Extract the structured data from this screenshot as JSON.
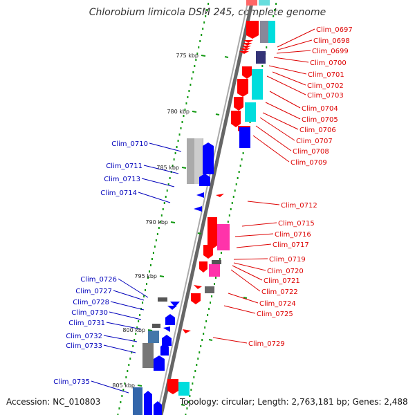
{
  "title": "Chlorobium limicola DSM 245, complete genome",
  "accession": "Accession: NC_010803",
  "topology": "Topology: circular; Length: 2,763,181 bp; Genes: 2,488",
  "colors": {
    "forward_label": "#dd0000",
    "reverse_label": "#0000bb",
    "forward_gene": "#ff0000",
    "reverse_gene": "#0000ff",
    "tick": "#119911",
    "backbone": "#777777"
  },
  "scale_labels": [
    "775 kbp",
    "780 kbp",
    "785 kbp",
    "790 kbp",
    "795 kbp",
    "800 kbp",
    "805 kbp"
  ],
  "forward_genes": [
    "Clim_0697",
    "Clim_0698",
    "Clim_0699",
    "Clim_0700",
    "Clim_0701",
    "Clim_0702",
    "Clim_0703",
    "Clim_0704",
    "Clim_0705",
    "Clim_0706",
    "Clim_0707",
    "Clim_0708",
    "Clim_0709",
    "Clim_0712",
    "Clim_0715",
    "Clim_0716",
    "Clim_0717",
    "Clim_0719",
    "Clim_0720",
    "Clim_0721",
    "Clim_0722",
    "Clim_0724",
    "Clim_0725",
    "Clim_0729"
  ],
  "reverse_genes": [
    "Clim_0710",
    "Clim_0711",
    "Clim_0713",
    "Clim_0714",
    "Clim_0726",
    "Clim_0727",
    "Clim_0728",
    "Clim_0730",
    "Clim_0731",
    "Clim_0732",
    "Clim_0733",
    "Clim_0735"
  ]
}
